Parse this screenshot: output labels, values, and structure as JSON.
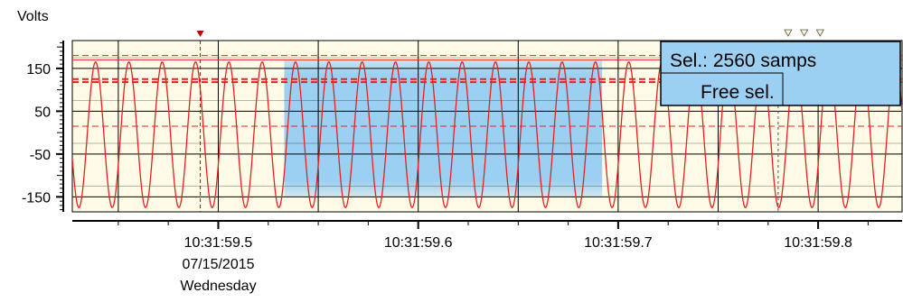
{
  "chart_data": {
    "type": "line",
    "ylabel": "Volts",
    "ylim": [
      -185,
      215
    ],
    "y_ticks": [
      {
        "value": 150,
        "label": "150"
      },
      {
        "value": 50,
        "label": "50"
      },
      {
        "value": -50,
        "label": "-50"
      },
      {
        "value": -150,
        "label": "-150"
      }
    ],
    "x_range": [
      "10:31:59.427",
      "10:31:59.842"
    ],
    "x_ticks": [
      {
        "time": "10:31:59.5",
        "lines": [
          "10:31:59.5",
          "07/15/2015",
          "Wednesday"
        ]
      },
      {
        "time": "10:31:59.6",
        "lines": [
          "10:31:59.6"
        ]
      },
      {
        "time": "10:31:59.7",
        "lines": [
          "10:31:59.7"
        ]
      },
      {
        "time": "10:31:59.8",
        "lines": [
          "10:31:59.8"
        ]
      }
    ],
    "series": [
      {
        "color": "#e82020",
        "waveform": "sine",
        "frequency_hz": 60,
        "amplitude_volts": 170,
        "offset_volts": -5
      }
    ],
    "reference_lines_volts": [
      180,
      170,
      125,
      118,
      15
    ],
    "free_selection": {
      "start": "10:31:59.533",
      "end": "10:31:59.692"
    },
    "cursor_marker": {
      "time": "10:31:59.491",
      "color": "#c00000"
    },
    "event_markers": [
      "10:31:59.785",
      "10:31:59.793",
      "10:31:59.801"
    ],
    "selection_box": {
      "line1": "Sel.: 2560 samps",
      "line2": "Free sel."
    },
    "grid": true,
    "colors": {
      "plot_background": "#fffbe6",
      "selection_fill": "#9cd0f2",
      "trace": "#e82020",
      "grid": "#000000"
    }
  }
}
